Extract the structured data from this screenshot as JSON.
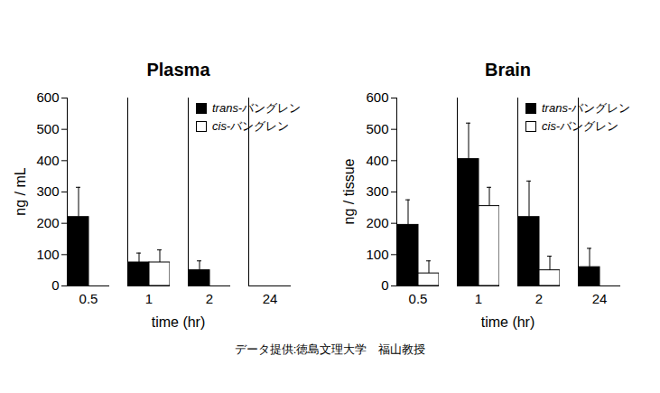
{
  "caption": "データ提供:徳島文理大学　福山教授",
  "chart_data": [
    {
      "type": "bar",
      "title": "Plasma",
      "x_label": "time (hr)",
      "y_label": "ng / mL",
      "categories": [
        "0.5",
        "1",
        "2",
        "24"
      ],
      "series": [
        {
          "name": "trans-バングレン",
          "color": "#000000",
          "values": [
            220,
            75,
            50,
            0
          ],
          "errors": [
            95,
            30,
            30,
            0
          ]
        },
        {
          "name": "cis-バングレン",
          "color": "#ffffff",
          "values": [
            0,
            75,
            0,
            0
          ],
          "errors": [
            0,
            40,
            0,
            0
          ]
        }
      ],
      "ylim": [
        0,
        600
      ],
      "yticks": [
        0,
        100,
        200,
        300,
        400,
        500,
        600
      ],
      "legend": "top-right"
    },
    {
      "type": "bar",
      "title": "Brain",
      "x_label": "time (hr)",
      "y_label": "ng / tissue",
      "categories": [
        "0.5",
        "1",
        "2",
        "24"
      ],
      "series": [
        {
          "name": "trans-バングレン",
          "color": "#000000",
          "values": [
            195,
            405,
            220,
            60
          ],
          "errors": [
            80,
            115,
            115,
            60
          ]
        },
        {
          "name": "cis-バングレン",
          "color": "#ffffff",
          "values": [
            40,
            255,
            50,
            0
          ],
          "errors": [
            40,
            60,
            45,
            0
          ]
        }
      ],
      "ylim": [
        0,
        600
      ],
      "yticks": [
        0,
        100,
        200,
        300,
        400,
        500,
        600
      ],
      "legend": "top-right"
    }
  ]
}
